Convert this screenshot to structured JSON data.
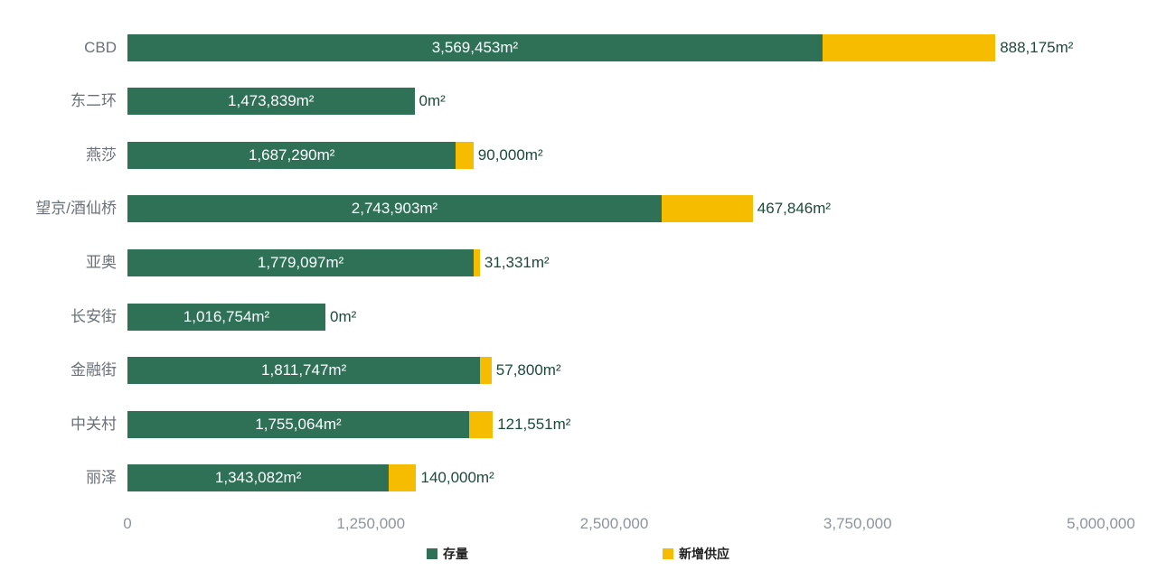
{
  "chart_data": {
    "type": "bar",
    "orientation": "horizontal",
    "stacked": true,
    "title": "",
    "unit": "m²",
    "categories": [
      "CBD",
      "东二环",
      "燕莎",
      "望京/酒仙桥",
      "亚奥",
      "长安街",
      "金融街",
      "中关村",
      "丽泽"
    ],
    "series": [
      {
        "name": "存量",
        "color": "#2E7157",
        "values": [
          3569453,
          1473839,
          1687290,
          2743903,
          1779097,
          1016754,
          1811747,
          1755064,
          1343082
        ],
        "labels": [
          "3,569,453m²",
          "1,473,839m²",
          "1,687,290m²",
          "2,743,903m²",
          "1,779,097m²",
          "1,016,754m²",
          "1,811,747m²",
          "1,755,064m²",
          "1,343,082m²"
        ]
      },
      {
        "name": "新增供应",
        "color": "#F6BD00",
        "values": [
          888175,
          0,
          90000,
          467846,
          31331,
          0,
          57800,
          121551,
          140000
        ],
        "labels": [
          "888,175m²",
          "0m²",
          "90,000m²",
          "467,846m²",
          "31,331m²",
          "0m²",
          "57,800m²",
          "121,551m²",
          "140,000m²"
        ]
      }
    ],
    "xlim": [
      0,
      5000000
    ],
    "x_ticks": [
      "0",
      "1,250,000",
      "2,500,000",
      "3,750,000",
      "5,000,000"
    ],
    "grid": false,
    "legend_position": "bottom",
    "legend": [
      {
        "label": "存量",
        "color": "#2E7157"
      },
      {
        "label": "新增供应",
        "color": "#F6BD00"
      }
    ]
  },
  "colors": {
    "stock_bar": "#2E7157",
    "supply_bar": "#F6BD00",
    "inside_value_label": "#FFFFFF",
    "outside_value_label": "#1D4A3B",
    "category_label": "#6A7178",
    "axis_tick_label": "#8E959D",
    "legend_text": "#1F1F1F",
    "background": "#FFFFFF"
  }
}
